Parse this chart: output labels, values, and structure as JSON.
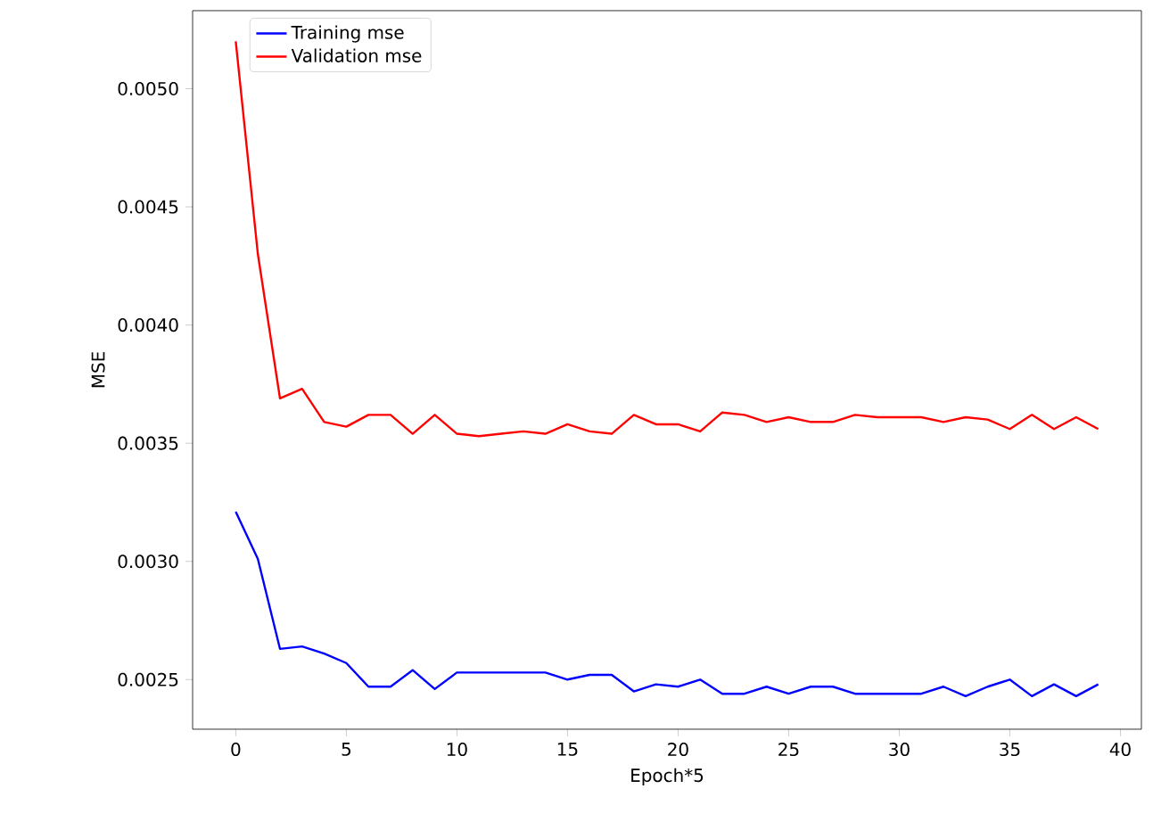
{
  "chart_data": {
    "type": "line",
    "xlabel": "Epoch*5",
    "ylabel": "MSE",
    "x": [
      0,
      1,
      2,
      3,
      4,
      5,
      6,
      7,
      8,
      9,
      10,
      11,
      12,
      13,
      14,
      15,
      16,
      17,
      18,
      19,
      20,
      21,
      22,
      23,
      24,
      25,
      26,
      27,
      28,
      29,
      30,
      31,
      32,
      33,
      34,
      35,
      36,
      37,
      38,
      39
    ],
    "series": [
      {
        "name": "Training mse",
        "color": "#0000ff",
        "values": [
          0.00321,
          0.00301,
          0.00263,
          0.00264,
          0.00261,
          0.00257,
          0.00247,
          0.00247,
          0.00254,
          0.00246,
          0.00253,
          0.00253,
          0.00253,
          0.00253,
          0.00253,
          0.0025,
          0.00252,
          0.00252,
          0.00245,
          0.00248,
          0.00247,
          0.0025,
          0.00244,
          0.00244,
          0.00247,
          0.00244,
          0.00247,
          0.00247,
          0.00244,
          0.00244,
          0.00244,
          0.00244,
          0.00247,
          0.00243,
          0.00247,
          0.0025,
          0.00243,
          0.00248,
          0.00243,
          0.00248
        ]
      },
      {
        "name": "Validation mse",
        "color": "#ff0000",
        "values": [
          0.0052,
          0.0043,
          0.00369,
          0.00373,
          0.00359,
          0.00357,
          0.00362,
          0.00362,
          0.00354,
          0.00362,
          0.00354,
          0.00353,
          0.00354,
          0.00355,
          0.00354,
          0.00358,
          0.00355,
          0.00354,
          0.00362,
          0.00358,
          0.00358,
          0.00355,
          0.00363,
          0.00362,
          0.00359,
          0.00361,
          0.00359,
          0.00359,
          0.00362,
          0.00361,
          0.00361,
          0.00361,
          0.00359,
          0.00361,
          0.0036,
          0.00356,
          0.00362,
          0.00356,
          0.00361,
          0.00356
        ]
      }
    ],
    "xlim": [
      -1.95,
      40.95
    ],
    "ylim": [
      0.00229,
      0.00533
    ],
    "xticks": [
      0,
      5,
      10,
      15,
      20,
      25,
      30,
      35,
      40
    ],
    "yticks": [
      {
        "value": 0.0025,
        "label": "0.0025"
      },
      {
        "value": 0.003,
        "label": "0.0030"
      },
      {
        "value": 0.0035,
        "label": "0.0035"
      },
      {
        "value": 0.004,
        "label": "0.0040"
      },
      {
        "value": 0.0045,
        "label": "0.0045"
      },
      {
        "value": 0.005,
        "label": "0.0050"
      }
    ],
    "legend": "top left",
    "grid": false,
    "marker": "none",
    "line_style": "solid"
  }
}
